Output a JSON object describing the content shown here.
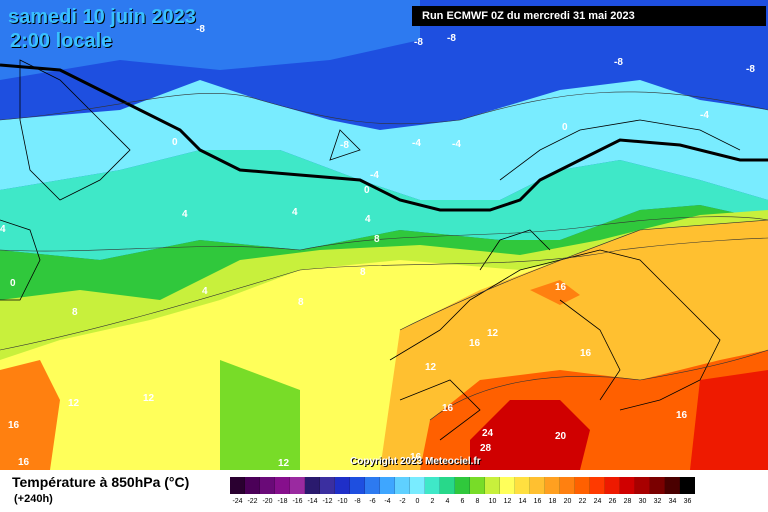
{
  "header": {
    "date_title": "samedi 10 juin 2023",
    "time_title": "2:00 locale",
    "run_info": "Run ECMWF 0Z du mercredi 31 mai 2023"
  },
  "map": {
    "copyright": "Copyright 2023 Meteociel.fr",
    "contour_labels": [
      "-8",
      "-8",
      "-8",
      "-8",
      "-8",
      "-8",
      "-4",
      "-4",
      "-4",
      "-4",
      "0",
      "0",
      "0",
      "0",
      "4",
      "4",
      "4",
      "4",
      "4",
      "8",
      "8",
      "8",
      "8",
      "12",
      "12",
      "12",
      "12",
      "12",
      "16",
      "16",
      "16",
      "16",
      "16",
      "16",
      "16",
      "20",
      "24",
      "28"
    ]
  },
  "footer": {
    "parameter": "Température à 850hPa (°C)",
    "lead_time": "(+240h)"
  },
  "legend": {
    "levels": [
      "-24",
      "-22",
      "-20",
      "-18",
      "-16",
      "-14",
      "-12",
      "-10",
      "-8",
      "-6",
      "-4",
      "-2",
      "0",
      "2",
      "4",
      "6",
      "8",
      "10",
      "12",
      "14",
      "16",
      "18",
      "20",
      "22",
      "24",
      "26",
      "28",
      "30",
      "32",
      "34",
      "36"
    ],
    "colors": [
      "#2a0030",
      "#4b0058",
      "#6a0a78",
      "#860f8c",
      "#9a2aa0",
      "#2a1a6e",
      "#3b2fa0",
      "#1f2fc8",
      "#1e4fe0",
      "#2d7af0",
      "#3ea6ff",
      "#5fd0ff",
      "#79ecff",
      "#3fe8c8",
      "#28d88a",
      "#30c83c",
      "#78dc28",
      "#c8f03c",
      "#ffff5a",
      "#ffe040",
      "#ffc030",
      "#ffa020",
      "#ff8010",
      "#ff6000",
      "#ff3a00",
      "#ee1a00",
      "#d00000",
      "#a80000",
      "#7a0000",
      "#4a0000",
      "#000000"
    ]
  }
}
